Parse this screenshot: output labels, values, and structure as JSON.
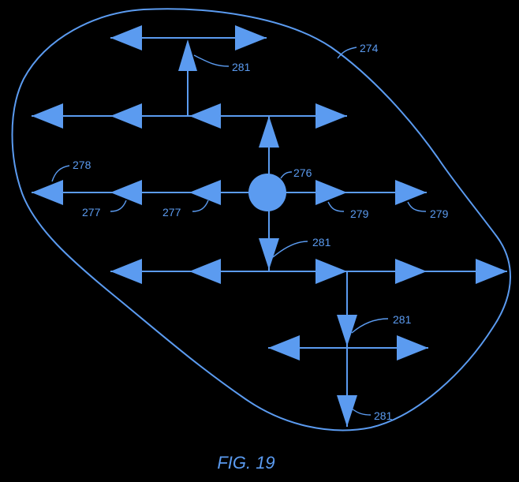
{
  "figure": {
    "caption": "FIG. 19",
    "colors": {
      "background": "#000000",
      "stroke": "#5b9bf0"
    },
    "labels": {
      "region": "274",
      "center_node": "276",
      "west_arrow_a": "277",
      "west_arrow_b": "277",
      "end_arrow": "278",
      "east_arrow_a": "279",
      "east_arrow_b": "279",
      "branch_top": "281",
      "branch_mid": "281",
      "branch_lower": "281",
      "branch_bottom": "281"
    }
  }
}
